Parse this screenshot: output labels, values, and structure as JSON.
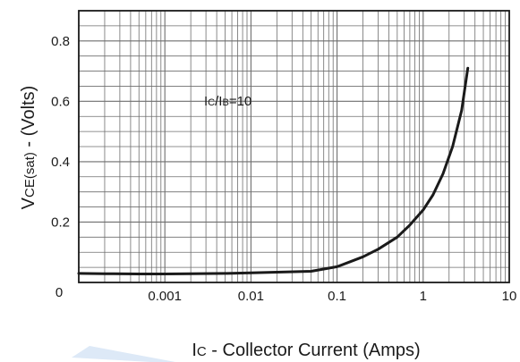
{
  "chart_data": {
    "type": "line",
    "title": "",
    "x_scale": "log",
    "xlim": [
      0.0001,
      10
    ],
    "ylim": [
      0,
      0.9
    ],
    "grid": true,
    "xlabel": {
      "main": "I",
      "sub": "C",
      "rest": " - Collector Current (Amps)"
    },
    "ylabel": {
      "main": "V",
      "sub": "CE(sat)",
      "rest": " - (Volts)"
    },
    "x_ticks": [
      {
        "value": 0.001,
        "label": "0.001"
      },
      {
        "value": 0.01,
        "label": "0.01"
      },
      {
        "value": 0.1,
        "label": "0.1"
      },
      {
        "value": 1,
        "label": "1"
      },
      {
        "value": 10,
        "label": "10"
      }
    ],
    "y_ticks": [
      {
        "value": 0,
        "label": "0"
      },
      {
        "value": 0.2,
        "label": "0.2"
      },
      {
        "value": 0.4,
        "label": "0.4"
      },
      {
        "value": 0.6,
        "label": "0.6"
      },
      {
        "value": 0.8,
        "label": "0.8"
      }
    ],
    "annotation": {
      "p1": "I",
      "s1": "C",
      "p2": "/I",
      "s2": "B",
      "p3": "=10"
    },
    "series": [
      {
        "x": [
          0.0001,
          0.0002,
          0.0005,
          0.001,
          0.002,
          0.005,
          0.01,
          0.02,
          0.05,
          0.1,
          0.2,
          0.3,
          0.5,
          0.7,
          1.0,
          1.3,
          1.7,
          2.2,
          2.8,
          3.3
        ],
        "y": [
          0.03,
          0.029,
          0.028,
          0.028,
          0.029,
          0.03,
          0.032,
          0.034,
          0.037,
          0.052,
          0.085,
          0.11,
          0.15,
          0.19,
          0.24,
          0.29,
          0.36,
          0.45,
          0.57,
          0.71
        ]
      }
    ],
    "colors": {
      "line": "#1a1a1a",
      "grid": "#6e6e6e",
      "frame": "#1a1a1a",
      "watermark": "#dde9f7"
    }
  }
}
